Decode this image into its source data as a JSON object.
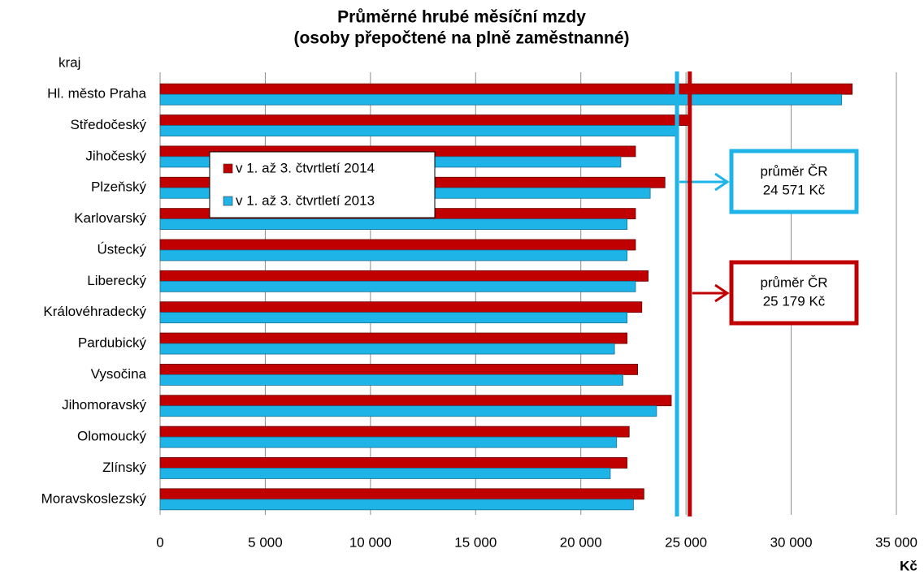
{
  "chart_data": {
    "type": "hbar",
    "title": "Průměrné hrubé měsíční mzdy",
    "subtitle": "(osoby přepočtené  na plně zaměstnanné)",
    "y_label": "kraj",
    "x_label": "Kč",
    "categories": [
      "Hl. město Praha",
      "Středočeský",
      "Jihočeský",
      "Plzeňský",
      "Karlovarský",
      "Ústecký",
      "Liberecký",
      "Královéhradecký",
      "Pardubický",
      "Vysočina",
      "Jihomoravský",
      "Olomoucký",
      "Zlínský",
      "Moravskoslezský"
    ],
    "series": [
      {
        "name": "v 1. až 3. čtvrtletí 2014",
        "color": "#c00000",
        "values": [
          32900,
          25200,
          22600,
          24000,
          22600,
          22600,
          23200,
          22900,
          22200,
          22700,
          24300,
          22300,
          22200,
          23000
        ]
      },
      {
        "name": "v 1. až 3. čtvrtletí 2013",
        "color": "#1fb4e8",
        "values": [
          32400,
          24500,
          21900,
          23300,
          22200,
          22200,
          22600,
          22200,
          21600,
          22000,
          23600,
          21700,
          21400,
          22500
        ]
      }
    ],
    "reference_lines": [
      {
        "label": "průměr ČR",
        "value": 24571,
        "value_label": "24 571 Kč",
        "color": "#1fb4e8"
      },
      {
        "label": "průměr ČR",
        "value": 25179,
        "value_label": "25 179 Kč",
        "color": "#c00000"
      }
    ],
    "xlim": [
      0,
      35000
    ],
    "xticks": [
      0,
      {
        "value": 5000,
        "label": "5 000"
      },
      {
        "value": 10000,
        "label": "10 000"
      },
      {
        "value": 15000,
        "label": "15 000"
      },
      {
        "value": 20000,
        "label": "20 000"
      },
      {
        "value": 25000,
        "label": "25 000"
      },
      {
        "value": 30000,
        "label": "30 000"
      },
      {
        "value": 35000,
        "label": "35 000"
      }
    ],
    "grid": true
  }
}
